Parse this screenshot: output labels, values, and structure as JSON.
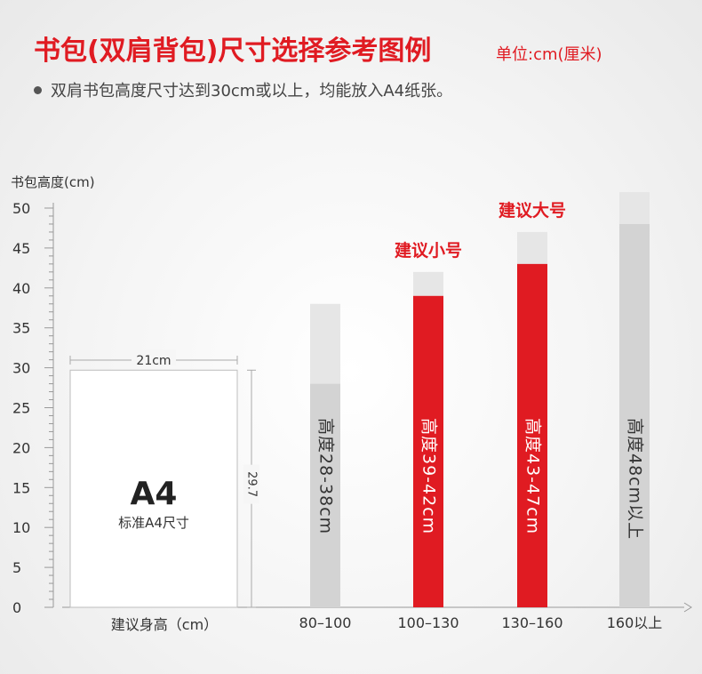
{
  "header": {
    "title": "书包(双肩背包)尺寸选择参考图例",
    "unit": "单位:cm(厘米)",
    "note": "双肩书包高度尺寸达到30cm或以上，均能放入A4纸张。"
  },
  "colors": {
    "accent": "#e01b22",
    "bar_gray": "#d3d3d3",
    "bar_range_gray": "#e6e6e6",
    "bar_red": "#e01b22",
    "bar_red_range": "#e6e6e6",
    "axis": "#999999",
    "text": "#333333"
  },
  "chart_data": {
    "type": "bar",
    "ylabel": "书包高度(cm)",
    "xlabel": "建议身高（cm）",
    "ylim": [
      0,
      50
    ],
    "yticks": [
      0,
      5,
      10,
      15,
      20,
      25,
      30,
      35,
      40,
      45,
      50
    ],
    "categories": [
      "80–100",
      "100–130",
      "130–160",
      "160以上"
    ],
    "series": [
      {
        "values": [
          28,
          39,
          43,
          48
        ],
        "upper": [
          38,
          42,
          47,
          52
        ],
        "bar_labels": [
          "高度28-38cm",
          "高度39-42cm",
          "高度43-47cm",
          "高度48cm以上"
        ],
        "highlight": [
          false,
          true,
          true,
          false
        ]
      }
    ],
    "annotations": [
      {
        "category": "100–130",
        "text": "建议小号"
      },
      {
        "category": "130–160",
        "text": "建议大号"
      }
    ],
    "reference": {
      "title": "A4",
      "subtitle": "标准A4尺寸",
      "width_label": "21cm",
      "height_label": "29.7",
      "height_value": 29.7
    },
    "grid": false
  }
}
